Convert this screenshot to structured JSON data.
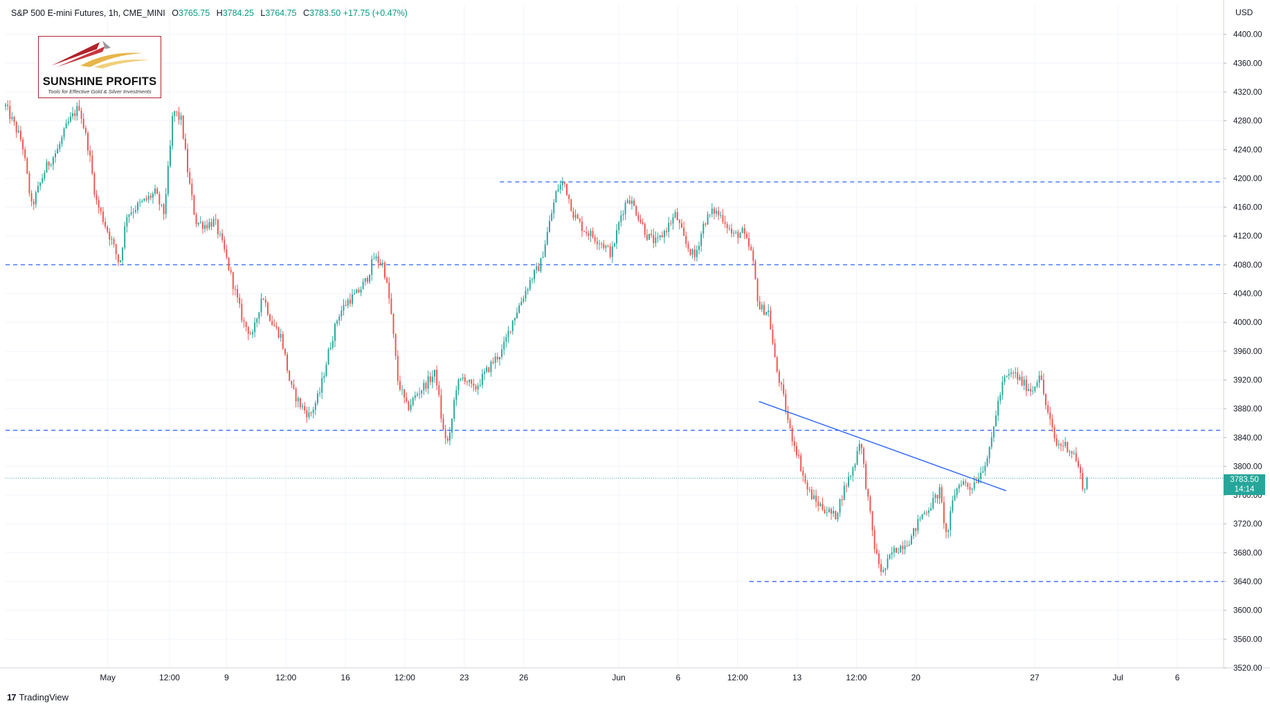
{
  "header": {
    "symbol": "S&P 500 E-mini Futures, 1h, CME_MINI",
    "o_label": "O",
    "o_value": "3765.75",
    "h_label": "H",
    "h_value": "3784.25",
    "l_label": "L",
    "l_value": "3764.75",
    "c_label": "C",
    "c_value": "3783.50",
    "change": "+17.75 (+0.47%)"
  },
  "currency": "USD",
  "logo": {
    "name": "SUNSHINE PROFITS",
    "tagline": "Tools for Effective Gold & Silver Investments"
  },
  "branding": {
    "tradingview_label": "TradingView",
    "tradingview_mark": "17"
  },
  "last_price": {
    "value": "3783.50",
    "countdown": "14:14"
  },
  "colors": {
    "up": "#26a69a",
    "down": "#ef5350",
    "level_line": "#2962ff",
    "last_price_line": "#26a69a"
  },
  "chart_data": {
    "type": "candlestick",
    "title": "S&P 500 E-mini Futures, 1h, CME_MINI",
    "ylim": [
      3520,
      4440
    ],
    "y_ticks": [
      "4400.00",
      "4360.00",
      "4320.00",
      "4280.00",
      "4240.00",
      "4200.00",
      "4160.00",
      "4120.00",
      "4080.00",
      "4040.00",
      "4000.00",
      "3960.00",
      "3920.00",
      "3880.00",
      "3840.00",
      "3800.00",
      "3760.00",
      "3720.00",
      "3680.00",
      "3640.00",
      "3600.00",
      "3560.00",
      "3520.00"
    ],
    "x_ticks": [
      {
        "label": "May",
        "pos": 8.6
      },
      {
        "label": "12:00",
        "pos": 13.8
      },
      {
        "label": "9",
        "pos": 18.6
      },
      {
        "label": "12:00",
        "pos": 23.6
      },
      {
        "label": "16",
        "pos": 28.6
      },
      {
        "label": "12:00",
        "pos": 33.6
      },
      {
        "label": "23",
        "pos": 38.6
      },
      {
        "label": "26",
        "pos": 43.6
      },
      {
        "label": "Jun",
        "pos": 51.6
      },
      {
        "label": "6",
        "pos": 56.6
      },
      {
        "label": "12:00",
        "pos": 61.6
      },
      {
        "label": "13",
        "pos": 66.6
      },
      {
        "label": "12:00",
        "pos": 71.6
      },
      {
        "label": "20",
        "pos": 76.6
      },
      {
        "label": "27",
        "pos": 86.6
      },
      {
        "label": "Jul",
        "pos": 93.6
      },
      {
        "label": "6",
        "pos": 98.6
      }
    ],
    "x_range": [
      0,
      102.5
    ],
    "grid": true,
    "close_path": [
      [
        0.0,
        4300
      ],
      [
        1.4,
        4250
      ],
      [
        2.2,
        4160
      ],
      [
        3.4,
        4215
      ],
      [
        4.4,
        4240
      ],
      [
        5.2,
        4275
      ],
      [
        6.2,
        4300
      ],
      [
        7.0,
        4240
      ],
      [
        7.6,
        4170
      ],
      [
        8.4,
        4135
      ],
      [
        9.0,
        4110
      ],
      [
        9.6,
        4080
      ],
      [
        10.2,
        4150
      ],
      [
        11.0,
        4160
      ],
      [
        11.8,
        4170
      ],
      [
        12.6,
        4180
      ],
      [
        13.3,
        4150
      ],
      [
        13.8,
        4230
      ],
      [
        14.1,
        4295
      ],
      [
        14.8,
        4280
      ],
      [
        15.4,
        4200
      ],
      [
        16.0,
        4140
      ],
      [
        16.8,
        4135
      ],
      [
        17.6,
        4140
      ],
      [
        18.4,
        4100
      ],
      [
        19.2,
        4050
      ],
      [
        20.0,
        4000
      ],
      [
        20.8,
        3980
      ],
      [
        21.6,
        4040
      ],
      [
        22.4,
        4000
      ],
      [
        23.2,
        3980
      ],
      [
        24.0,
        3910
      ],
      [
        24.8,
        3885
      ],
      [
        25.6,
        3870
      ],
      [
        26.4,
        3900
      ],
      [
        27.2,
        3960
      ],
      [
        28.0,
        4010
      ],
      [
        28.8,
        4030
      ],
      [
        29.6,
        4040
      ],
      [
        30.4,
        4060
      ],
      [
        31.0,
        4090
      ],
      [
        31.8,
        4080
      ],
      [
        32.4,
        4020
      ],
      [
        33.0,
        3920
      ],
      [
        33.8,
        3880
      ],
      [
        34.6,
        3900
      ],
      [
        35.4,
        3915
      ],
      [
        36.2,
        3930
      ],
      [
        36.8,
        3850
      ],
      [
        37.3,
        3830
      ],
      [
        37.9,
        3910
      ],
      [
        38.6,
        3925
      ],
      [
        39.4,
        3905
      ],
      [
        40.2,
        3925
      ],
      [
        41.0,
        3945
      ],
      [
        41.8,
        3960
      ],
      [
        42.6,
        4000
      ],
      [
        43.4,
        4030
      ],
      [
        44.2,
        4060
      ],
      [
        45.0,
        4080
      ],
      [
        45.8,
        4140
      ],
      [
        46.4,
        4185
      ],
      [
        47.0,
        4195
      ],
      [
        47.8,
        4150
      ],
      [
        48.6,
        4130
      ],
      [
        49.4,
        4120
      ],
      [
        50.2,
        4110
      ],
      [
        51.0,
        4095
      ],
      [
        51.8,
        4150
      ],
      [
        52.4,
        4175
      ],
      [
        53.2,
        4150
      ],
      [
        54.0,
        4120
      ],
      [
        54.8,
        4110
      ],
      [
        55.6,
        4130
      ],
      [
        56.4,
        4150
      ],
      [
        57.2,
        4110
      ],
      [
        58.0,
        4090
      ],
      [
        58.8,
        4140
      ],
      [
        59.6,
        4155
      ],
      [
        60.4,
        4145
      ],
      [
        61.2,
        4120
      ],
      [
        62.0,
        4125
      ],
      [
        62.8,
        4095
      ],
      [
        63.4,
        4020
      ],
      [
        64.2,
        4015
      ],
      [
        64.8,
        3940
      ],
      [
        65.4,
        3900
      ],
      [
        66.0,
        3850
      ],
      [
        66.6,
        3820
      ],
      [
        67.4,
        3770
      ],
      [
        68.2,
        3750
      ],
      [
        69.0,
        3740
      ],
      [
        69.8,
        3730
      ],
      [
        70.6,
        3770
      ],
      [
        71.4,
        3800
      ],
      [
        71.9,
        3840
      ],
      [
        72.6,
        3750
      ],
      [
        73.2,
        3680
      ],
      [
        73.8,
        3650
      ],
      [
        74.6,
        3680
      ],
      [
        75.4,
        3690
      ],
      [
        76.2,
        3700
      ],
      [
        77.0,
        3730
      ],
      [
        77.8,
        3745
      ],
      [
        78.6,
        3765
      ],
      [
        79.2,
        3700
      ],
      [
        79.8,
        3760
      ],
      [
        80.4,
        3780
      ],
      [
        81.2,
        3770
      ],
      [
        82.0,
        3790
      ],
      [
        82.8,
        3820
      ],
      [
        83.4,
        3880
      ],
      [
        84.0,
        3920
      ],
      [
        84.8,
        3930
      ],
      [
        85.6,
        3915
      ],
      [
        86.4,
        3905
      ],
      [
        87.0,
        3930
      ],
      [
        87.6,
        3880
      ],
      [
        88.4,
        3830
      ],
      [
        89.2,
        3830
      ],
      [
        90.0,
        3815
      ],
      [
        90.8,
        3765
      ],
      [
        91.0,
        3783.5
      ]
    ],
    "candle_count": 500,
    "horizontal_levels": [
      {
        "price": 4195,
        "from": 41.6
      },
      {
        "price": 4080,
        "from": 0
      },
      {
        "price": 3850,
        "from": 0
      },
      {
        "price": 3640,
        "from": 62.6
      }
    ],
    "trendline": {
      "from": [
        63.4,
        3890
      ],
      "to": [
        84.2,
        3766
      ]
    },
    "last_price": 3783.5
  }
}
